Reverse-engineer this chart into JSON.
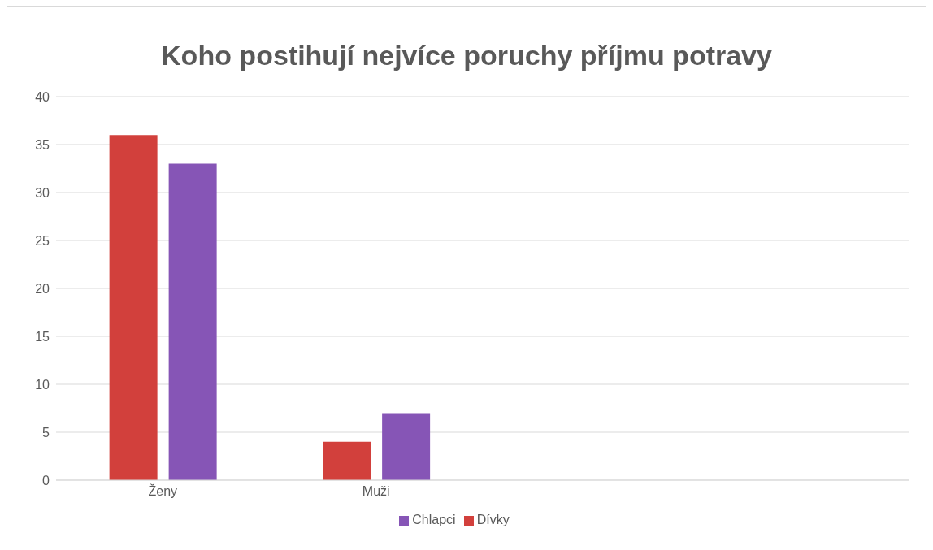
{
  "chart_data": {
    "type": "bar",
    "title": "Koho postihují nejvíce poruchy příjmu potravy",
    "categories": [
      "Ženy",
      "Muži",
      null,
      null
    ],
    "series": [
      {
        "name": "Dívky",
        "color": "#d2403c",
        "values": [
          36,
          4,
          null,
          null
        ]
      },
      {
        "name": "Chlapci",
        "color": "#8655b6",
        "values": [
          33,
          7,
          null,
          null
        ]
      }
    ],
    "ylim": [
      0,
      40
    ],
    "yticks": [
      0,
      5,
      10,
      15,
      20,
      25,
      30,
      35,
      40
    ],
    "grid": "y",
    "legend": "bottom"
  }
}
